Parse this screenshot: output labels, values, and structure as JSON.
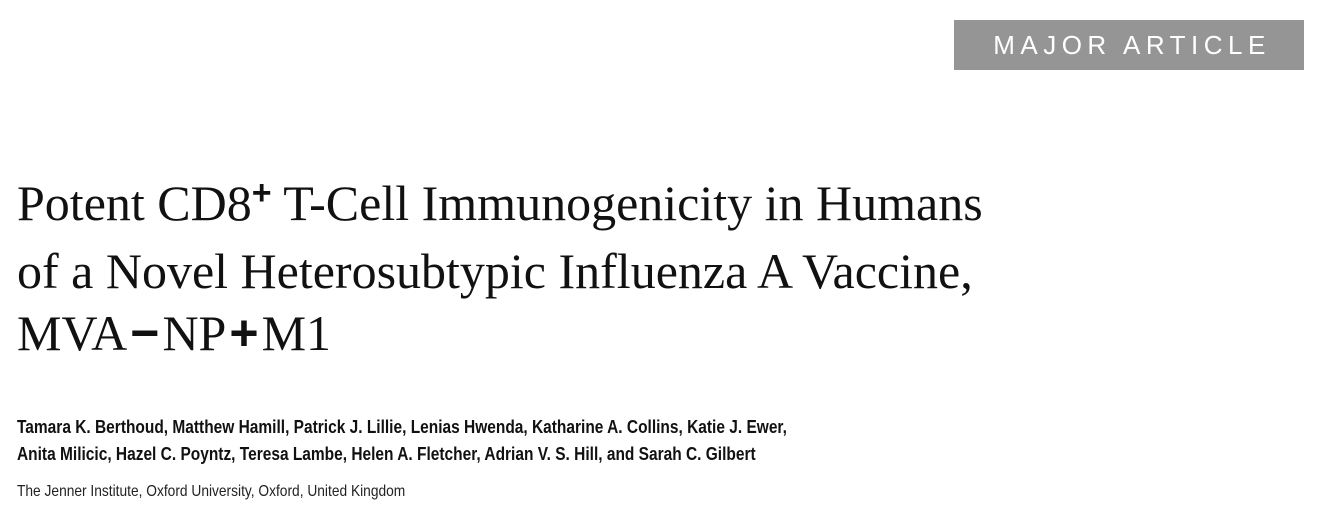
{
  "section_label": "MAJOR ARTICLE",
  "title": {
    "line1_before_sup": "Potent CD8",
    "line1_sup": "+",
    "line1_after_sup": " T-Cell Immunogenicity in Humans",
    "line2": "of a Novel Heterosubtypic Influenza A Vaccine,",
    "line3_part1": "MVA",
    "line3_sym1": "−",
    "line3_part2": "NP",
    "line3_sym2": "+",
    "line3_part3": "M1"
  },
  "authors": {
    "line1": "Tamara K. Berthoud, Matthew Hamill, Patrick J. Lillie, Lenias Hwenda, Katharine A. Collins, Katie J. Ewer,",
    "line2": "Anita Milicic, Hazel C. Poyntz, Teresa Lambe, Helen A. Fletcher, Adrian V. S. Hill, and Sarah C. Gilbert"
  },
  "affiliation": "The Jenner Institute, Oxford University, Oxford, United Kingdom",
  "colors": {
    "badge_background": "#959595",
    "badge_text": "#ffffff",
    "text": "#111111"
  }
}
